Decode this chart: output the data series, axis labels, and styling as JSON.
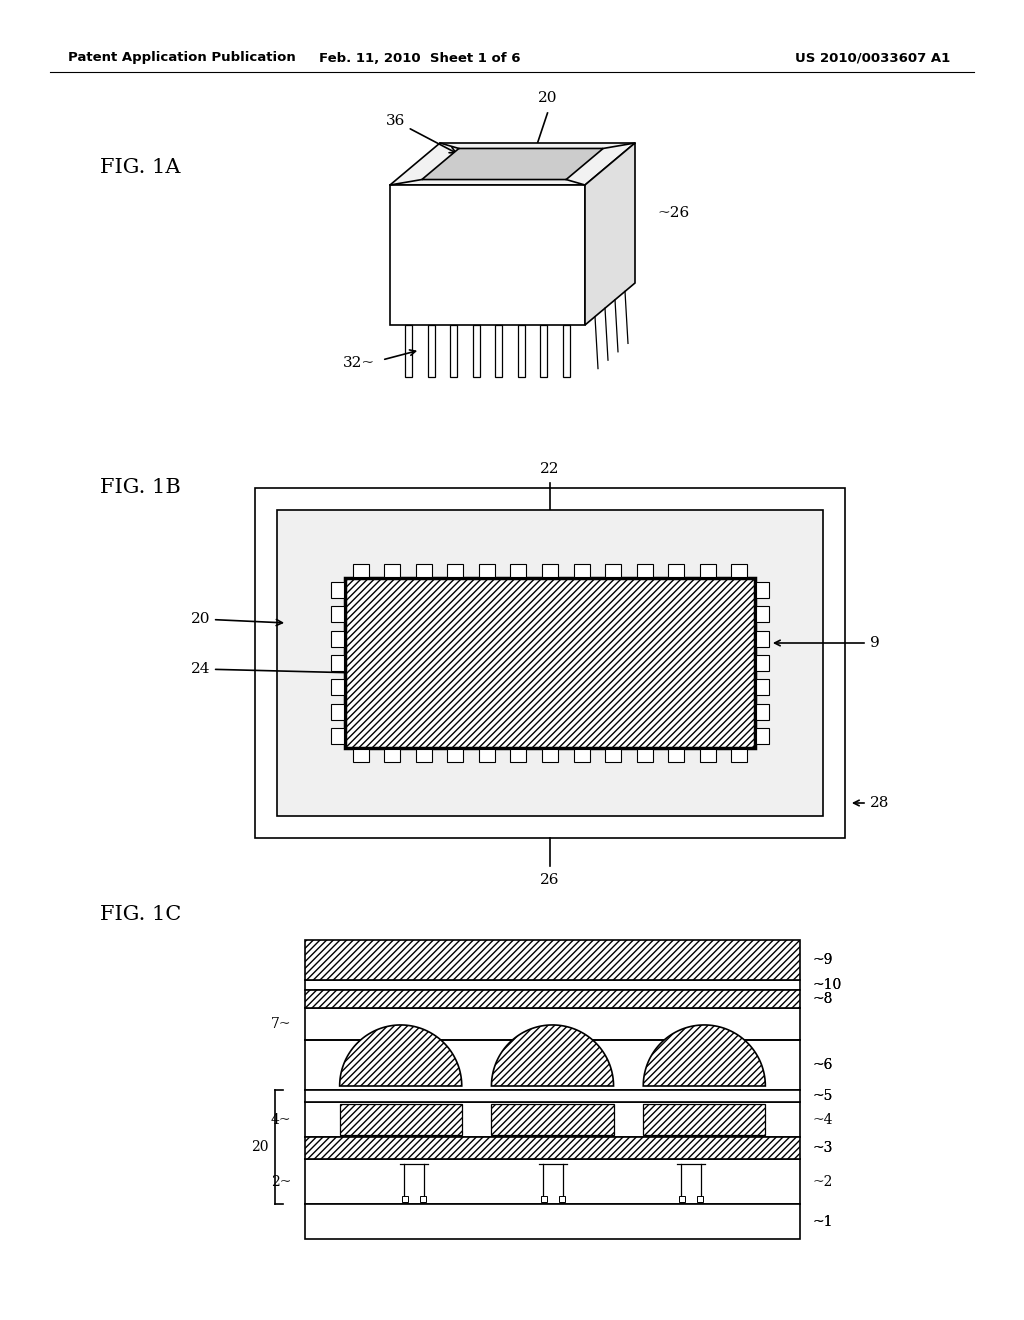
{
  "background_color": "#ffffff",
  "header_left": "Patent Application Publication",
  "header_mid": "Feb. 11, 2010  Sheet 1 of 6",
  "header_right": "US 2010/0033607 A1",
  "fig1a_label": "FIG. 1A",
  "fig1b_label": "FIG. 1B",
  "fig1c_label": "FIG. 1C",
  "line_color": "#000000"
}
